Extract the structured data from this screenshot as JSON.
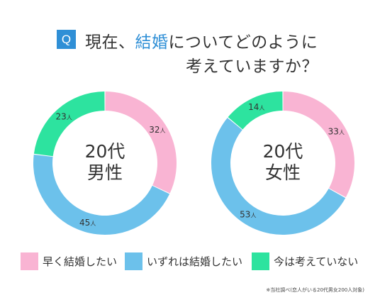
{
  "question": {
    "badge": "Q",
    "line1_before": "現在、",
    "line1_highlight": "結婚",
    "line1_after": "についてどのように",
    "line2": "考えていますか？"
  },
  "colors": {
    "accent": "#2f8fd6",
    "want_early": "#f9b4d3",
    "someday": "#6cc1eb",
    "not_thinking": "#2de39f"
  },
  "chart_data": [
    {
      "type": "pie",
      "title": "20代\n男性",
      "title_lines": [
        "20代",
        "男性"
      ],
      "unit": "人",
      "categories": [
        "早く結婚したい",
        "いずれは結婚したい",
        "今は考えていない"
      ],
      "values": [
        32,
        45,
        23
      ],
      "data_labels": [
        "32",
        "45",
        "23"
      ]
    },
    {
      "type": "pie",
      "title": "20代\n女性",
      "title_lines": [
        "20代",
        "女性"
      ],
      "unit": "人",
      "categories": [
        "早く結婚したい",
        "いずれは結婚したい",
        "今は考えていない"
      ],
      "values": [
        33,
        53,
        14
      ],
      "data_labels": [
        "33",
        "53",
        "14"
      ]
    }
  ],
  "legend": [
    {
      "label": "早く結婚したい",
      "color": "#f9b4d3"
    },
    {
      "label": "いずれは結婚したい",
      "color": "#6cc1eb"
    },
    {
      "label": "今は考えていない",
      "color": "#2de39f"
    }
  ],
  "footnote": "※当社調べ(恋人がいる20代男女200人対象)"
}
